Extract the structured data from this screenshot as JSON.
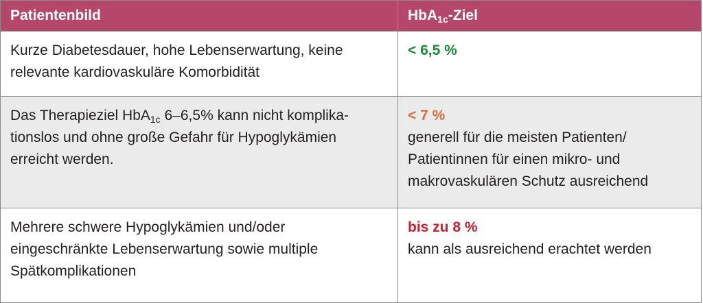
{
  "header": {
    "col1": "Patientenbild",
    "col2_prefix": "HbA",
    "col2_sub": "1c",
    "col2_suffix": "-Ziel"
  },
  "colors": {
    "header_bg": "#b5486a",
    "target_green": "#1b8a3a",
    "target_orange": "#e06a3c",
    "target_red": "#c8202f",
    "row_grey": "#ebebeb"
  },
  "rows": [
    {
      "description_lines": [
        "Kurze Diabetesdauer, hohe Lebenserwartung, keine",
        "relevante kardiovaskuläre Komorbidität"
      ],
      "target": "< 6,5 %",
      "note_lines": []
    },
    {
      "description_prefix": "Das Therapieziel HbA",
      "description_sub": "1c",
      "description_suffix": " 6–6,5% kann nicht komplika-",
      "description_lines": [
        "tionslos und ohne große Gefahr für Hypoglykämien",
        "erreicht werden."
      ],
      "target": "< 7 %",
      "note_lines": [
        "generell für die meisten Patienten/",
        "Patientinnen für einen mikro- und",
        "makrovaskulären Schutz ausreichend"
      ]
    },
    {
      "description_lines": [
        "Mehrere schwere Hypoglykämien und/oder",
        "eingeschränkte Lebenserwartung sowie multiple",
        "Spätkomplikationen"
      ],
      "target": "bis zu 8 %",
      "note_lines": [
        "kann als ausreichend erachtet werden"
      ]
    }
  ]
}
